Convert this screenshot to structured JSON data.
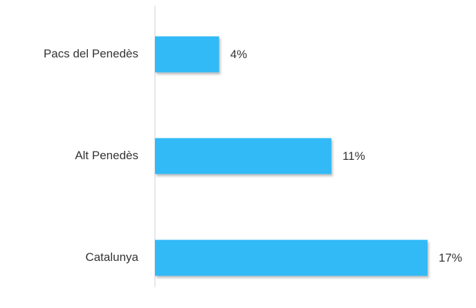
{
  "chart_data": {
    "type": "bar",
    "orientation": "horizontal",
    "categories": [
      "Pacs del Penedès",
      "Alt Penedès",
      "Catalunya"
    ],
    "values": [
      4,
      11,
      17
    ],
    "value_labels": [
      "4%",
      "11%",
      "17%"
    ],
    "color": "#32baf7"
  }
}
